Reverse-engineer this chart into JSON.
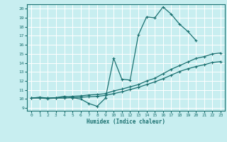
{
  "xlabel": "Humidex (Indice chaleur)",
  "ylabel": "",
  "xlim": [
    -0.5,
    23.5
  ],
  "ylim": [
    8.7,
    20.5
  ],
  "yticks": [
    9,
    10,
    11,
    12,
    13,
    14,
    15,
    16,
    17,
    18,
    19,
    20
  ],
  "xticks": [
    0,
    1,
    2,
    3,
    4,
    5,
    6,
    7,
    8,
    9,
    10,
    11,
    12,
    13,
    14,
    15,
    16,
    17,
    18,
    19,
    20,
    21,
    22,
    23
  ],
  "background_color": "#c8eef0",
  "grid_color": "#ffffff",
  "line_color": "#1a7070",
  "line1_x": [
    0,
    1,
    2,
    3,
    4,
    5,
    6,
    7,
    8,
    9,
    10,
    11,
    12,
    13,
    14,
    15,
    16,
    17,
    18,
    19,
    20
  ],
  "line1_y": [
    10.1,
    10.2,
    10.1,
    10.15,
    10.3,
    10.15,
    10.0,
    9.5,
    9.2,
    10.1,
    14.5,
    12.2,
    12.1,
    17.1,
    19.1,
    19.0,
    20.2,
    19.4,
    18.3,
    17.5,
    16.5
  ],
  "line2_x": [
    0,
    1,
    2,
    3,
    4,
    5,
    6,
    7,
    8,
    9,
    10,
    11,
    12,
    13,
    14,
    15,
    16,
    17,
    18,
    19,
    20,
    21,
    22,
    23
  ],
  "line2_y": [
    10.1,
    10.15,
    10.1,
    10.15,
    10.2,
    10.3,
    10.35,
    10.45,
    10.5,
    10.6,
    10.9,
    11.1,
    11.35,
    11.6,
    12.0,
    12.3,
    12.8,
    13.3,
    13.7,
    14.1,
    14.5,
    14.7,
    15.0,
    15.1
  ],
  "line3_x": [
    0,
    1,
    2,
    3,
    4,
    5,
    6,
    7,
    8,
    9,
    10,
    11,
    12,
    13,
    14,
    15,
    16,
    17,
    18,
    19,
    20,
    21,
    22,
    23
  ],
  "line3_y": [
    10.1,
    10.1,
    10.05,
    10.1,
    10.1,
    10.15,
    10.2,
    10.25,
    10.3,
    10.4,
    10.6,
    10.8,
    11.05,
    11.3,
    11.6,
    11.9,
    12.25,
    12.65,
    13.05,
    13.35,
    13.6,
    13.8,
    14.05,
    14.15
  ]
}
